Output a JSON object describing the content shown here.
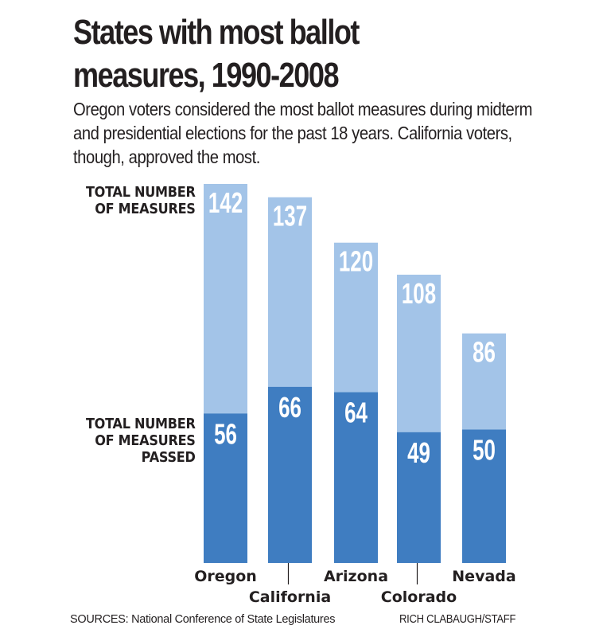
{
  "chart_data": {
    "type": "bar",
    "title": "States with most ballot measures, 1990-2008",
    "subtitle": "Oregon voters considered the most ballot measures during midterm and presidential elections for the past 18 years. California voters, though, approved the most.",
    "categories": [
      "Oregon",
      "California",
      "Arizona",
      "Colorado",
      "Nevada"
    ],
    "series": [
      {
        "name": "TOTAL NUMBER OF MEASURES",
        "values": [
          142,
          137,
          120,
          108,
          86
        ],
        "color": "#a3c4e8"
      },
      {
        "name": "TOTAL NUMBER OF MEASURES PASSED",
        "values": [
          56,
          66,
          64,
          49,
          50
        ],
        "color": "#3f7dc1"
      }
    ],
    "xlabel": "",
    "ylabel": "",
    "ylim": [
      0,
      142
    ],
    "grid": false,
    "legend": "left"
  },
  "legend": {
    "total": "TOTAL NUMBER\nOF MEASURES",
    "passed": "TOTAL NUMBER\nOF MEASURES\nPASSED"
  },
  "footer": {
    "source": "SOURCES: National Conference of State Legislatures",
    "credit": "RICH CLABAUGH/STAFF"
  }
}
